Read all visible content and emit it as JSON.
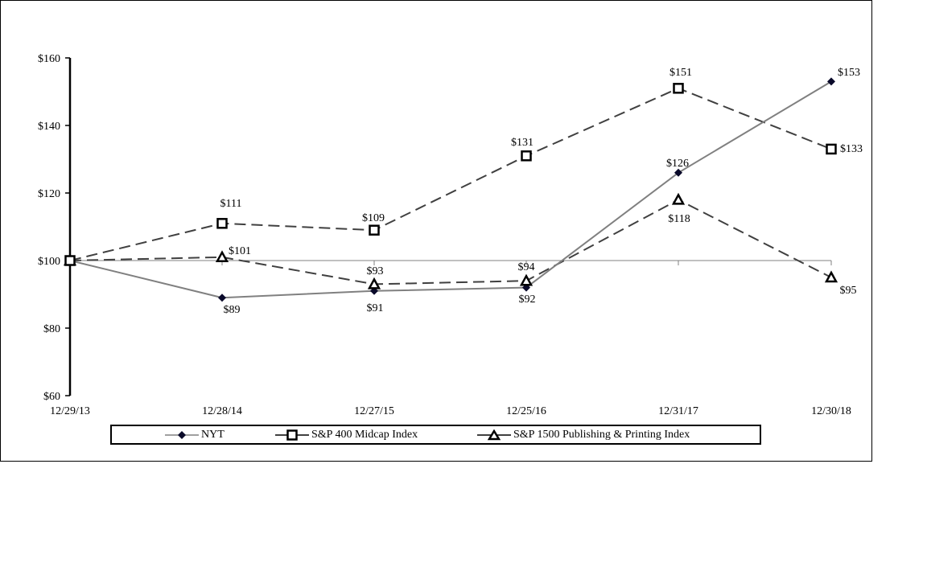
{
  "chart_data": {
    "type": "line",
    "title": "",
    "xlabel": "",
    "ylabel": "",
    "ylim": [
      60,
      160
    ],
    "y_ticks": [
      "$60",
      "$80",
      "$100",
      "$120",
      "$140",
      "$160"
    ],
    "grid": false,
    "baseline": 100,
    "legend_position": "bottom",
    "categories": [
      "12/29/13",
      "12/28/14",
      "12/27/15",
      "12/25/16",
      "12/31/17",
      "12/30/18"
    ],
    "series": [
      {
        "name": "NYT",
        "marker": "diamond",
        "line": "solid-gray",
        "values": [
          100,
          89,
          91,
          92,
          126,
          153
        ],
        "labels": [
          "",
          "$89",
          "$91",
          "$92",
          "$126",
          "$153"
        ]
      },
      {
        "name": "S&P 400 Midcap Index",
        "marker": "square",
        "line": "dashed",
        "values": [
          100,
          111,
          109,
          131,
          151,
          133
        ],
        "labels": [
          "",
          "$111",
          "$109",
          "$131",
          "$151",
          "$133"
        ]
      },
      {
        "name": "S&P 1500 Publishing & Printing Index",
        "marker": "triangle",
        "line": "dashed",
        "values": [
          100,
          101,
          93,
          94,
          118,
          95
        ],
        "labels": [
          "",
          "$101",
          "$93",
          "$94",
          "$118",
          "$95"
        ]
      }
    ]
  },
  "legend": {
    "nyt": "NYT",
    "midcap": "S&P 400 Midcap Index",
    "publishing": "S&P 1500 Publishing & Printing Index"
  },
  "colors": {
    "nyt_line": "#808080",
    "nyt_marker": "#0a0a2a",
    "dashed": "#404040",
    "axis": "#000000"
  }
}
